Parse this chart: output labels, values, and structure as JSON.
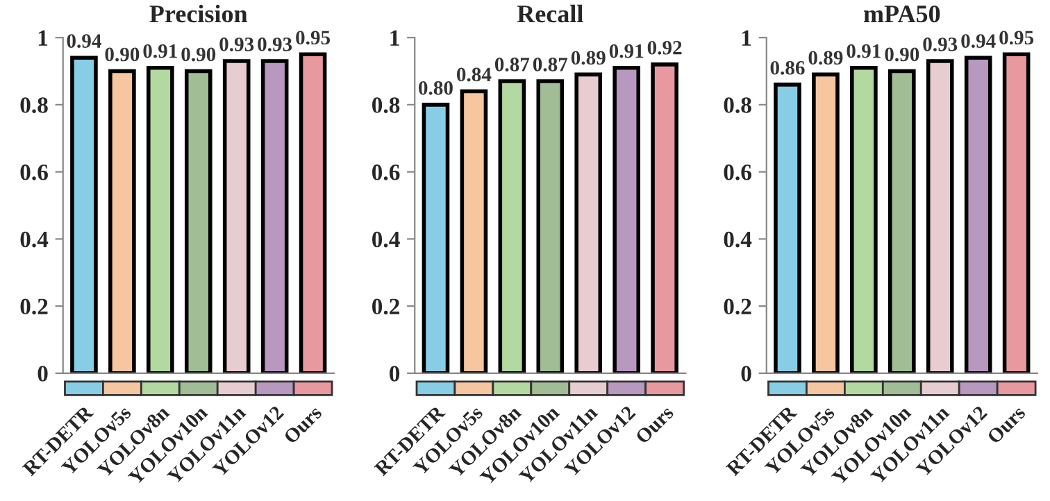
{
  "chart_data": [
    {
      "type": "bar",
      "title": "Precision",
      "categories": [
        "RT-DETR",
        "YOLOv5s",
        "YOLOv8n",
        "YOLOv10n",
        "YOLOv11n",
        "YOLOv12",
        "Ours"
      ],
      "values": [
        0.94,
        0.9,
        0.91,
        0.9,
        0.93,
        0.93,
        0.95
      ],
      "value_labels": [
        "0.94",
        "0.90",
        "0.91",
        "0.90",
        "0.93",
        "0.93",
        "0.95"
      ],
      "colors": [
        "#87cde6",
        "#f5c6a0",
        "#b4d9a0",
        "#a0bd96",
        "#e8cdd0",
        "#b898bf",
        "#e899a0"
      ],
      "ylim": [
        0,
        1
      ],
      "yticks": [
        0,
        0.2,
        0.4,
        0.6,
        0.8,
        1
      ],
      "grid": false,
      "legend": false
    },
    {
      "type": "bar",
      "title": "Recall",
      "categories": [
        "RT-DETR",
        "YOLOv5s",
        "YOLOv8n",
        "YOLOv10n",
        "YOLOv11n",
        "YOLOv12",
        "Ours"
      ],
      "values": [
        0.8,
        0.84,
        0.87,
        0.87,
        0.89,
        0.91,
        0.92
      ],
      "value_labels": [
        "0.80",
        "0.84",
        "0.87",
        "0.87",
        "0.89",
        "0.91",
        "0.92"
      ],
      "colors": [
        "#87cde6",
        "#f5c6a0",
        "#b4d9a0",
        "#a0bd96",
        "#e8cdd0",
        "#b898bf",
        "#e899a0"
      ],
      "ylim": [
        0,
        1
      ],
      "yticks": [
        0,
        0.2,
        0.4,
        0.6,
        0.8,
        1
      ],
      "grid": false,
      "legend": false
    },
    {
      "type": "bar",
      "title": "mPA50",
      "categories": [
        "RT-DETR",
        "YOLOv5s",
        "YOLOv8n",
        "YOLOv10n",
        "YOLOv11n",
        "YOLOv12",
        "Ours"
      ],
      "values": [
        0.86,
        0.89,
        0.91,
        0.9,
        0.93,
        0.94,
        0.95
      ],
      "value_labels": [
        "0.86",
        "0.89",
        "0.91",
        "0.90",
        "0.93",
        "0.94",
        "0.95"
      ],
      "colors": [
        "#87cde6",
        "#f5c6a0",
        "#b4d9a0",
        "#a0bd96",
        "#e8cdd0",
        "#b898bf",
        "#e899a0"
      ],
      "ylim": [
        0,
        1
      ],
      "yticks": [
        0,
        0.2,
        0.4,
        0.6,
        0.8,
        1
      ],
      "grid": false,
      "legend": false
    }
  ]
}
